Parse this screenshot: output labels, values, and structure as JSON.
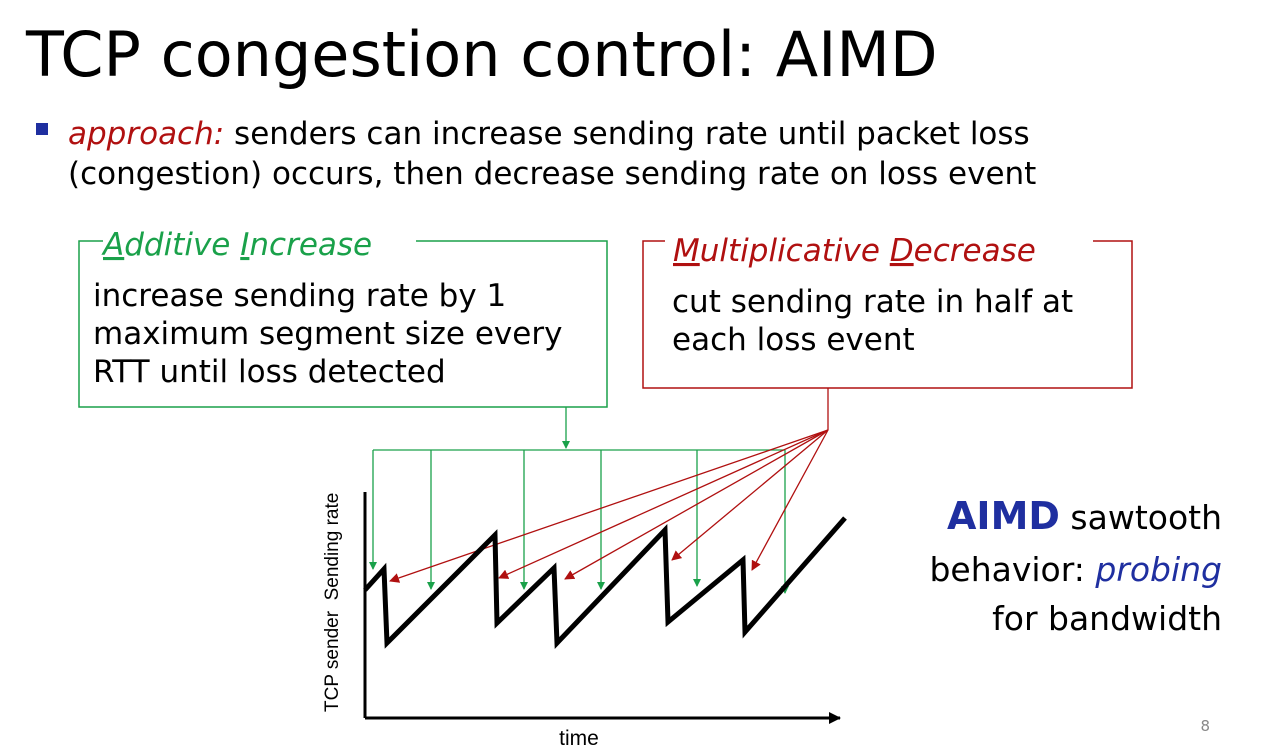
{
  "title": "TCP congestion control: AIMD",
  "bullet": {
    "lead": "approach:",
    "lines": [
      " senders can increase sending rate until packet loss",
      "(congestion) occurs, then decrease sending rate on loss event"
    ]
  },
  "additive_increase": {
    "heading": [
      "A",
      "dditive ",
      "I",
      "ncrease"
    ],
    "body": [
      "increase sending rate by 1",
      "maximum segment size every",
      "RTT until loss detected"
    ]
  },
  "multiplicative_decrease": {
    "heading": [
      "M",
      "ultiplicative ",
      "D",
      "ecrease"
    ],
    "body": [
      "cut sending rate in half at",
      "each loss event"
    ]
  },
  "graph": {
    "y_label": "TCP sender  Sending rate",
    "x_label": "time"
  },
  "caption": {
    "lines": [
      [
        "AIMD",
        " sawtooth"
      ],
      [
        "behavior: ",
        "probing"
      ],
      [
        "for bandwidth"
      ]
    ]
  },
  "page_number": "8"
}
